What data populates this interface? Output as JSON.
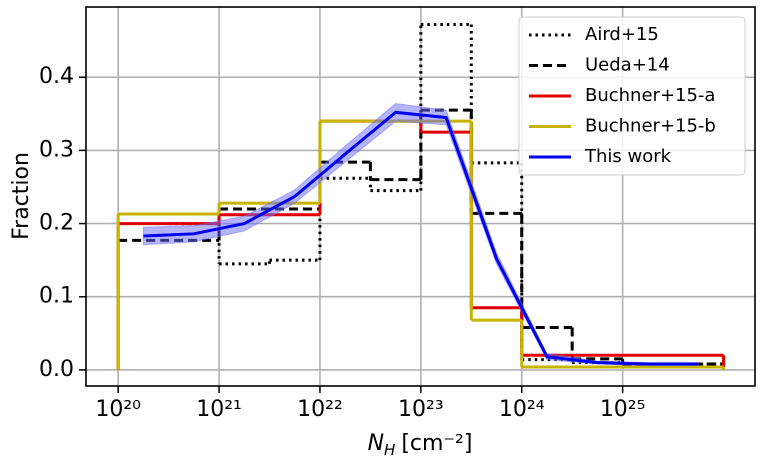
{
  "chart_data": {
    "type": "step",
    "xlabel": {
      "symbol": "N",
      "subscript": "H",
      "unit": "[cm⁻²]"
    },
    "ylabel": "Fraction",
    "xscale": "log",
    "grid": true,
    "legend": "upper right",
    "xlim": [
      4.8e+19,
      2.05e+26
    ],
    "ylim": [
      -0.022,
      0.496
    ],
    "xticks": [
      {
        "value": 1e+20,
        "label": "10²⁰"
      },
      {
        "value": 1e+21,
        "label": "10²¹"
      },
      {
        "value": 1e+22,
        "label": "10²²"
      },
      {
        "value": 1e+23,
        "label": "10²³"
      },
      {
        "value": 1e+24,
        "label": "10²⁴"
      },
      {
        "value": 1e+25,
        "label": "10²⁵"
      }
    ],
    "yticks": [
      {
        "value": 0,
        "label": "0.0"
      },
      0.1,
      0.2,
      0.3,
      0.4
    ],
    "series": [
      {
        "name": "Aird+15",
        "color": "#000000",
        "style": "dotted",
        "drop_to_zero": false,
        "edges": [
          3.162e+20,
          1e+21,
          3.162e+21,
          1e+22,
          3.162e+22,
          1e+23,
          3.162e+23,
          1e+24,
          3.162e+24,
          1e+25,
          1e+26
        ],
        "values": [
          0.2,
          0.145,
          0.15,
          0.262,
          0.245,
          0.472,
          0.283,
          0.014,
          0.01,
          0.008
        ]
      },
      {
        "name": "Ueda+14",
        "color": "#000000",
        "style": "dashed",
        "drop_to_zero": false,
        "edges": [
          1e+20,
          1e+21,
          1e+22,
          3.162e+22,
          1e+23,
          3.162e+23,
          1e+24,
          3.162e+24,
          1e+25,
          1e+26
        ],
        "values": [
          0.177,
          0.22,
          0.284,
          0.26,
          0.355,
          0.214,
          0.058,
          0.015,
          0.008
        ]
      },
      {
        "name": "Buchner+15-a",
        "color": "#e00000",
        "style": "solid",
        "drop_to_zero": true,
        "edges": [
          1e+20,
          1e+21,
          1e+22,
          1e+23,
          3.162e+23,
          1e+24,
          1e+26
        ],
        "values": [
          0.2,
          0.212,
          0.34,
          0.325,
          0.085,
          0.02
        ]
      },
      {
        "name": "Buchner+15-b",
        "color": "#c8b400",
        "style": "solid",
        "drop_to_zero": true,
        "edges": [
          1e+20,
          1e+21,
          1e+22,
          3.162e+23,
          1e+24,
          1e+26
        ],
        "values": [
          0.213,
          0.228,
          0.34,
          0.068,
          0.004
        ]
      },
      {
        "name": "This work",
        "color": "#0000ee",
        "style": "solid",
        "band_color": "#6b6bff",
        "x": [
          1.778e+20,
          5.623e+20,
          1.778e+21,
          5.623e+21,
          1.778e+22,
          5.623e+22,
          1.778e+23,
          5.623e+23,
          1.778e+24,
          5.623e+24,
          1.778e+25,
          5.623e+25
        ],
        "values": [
          0.183,
          0.186,
          0.2,
          0.237,
          0.295,
          0.352,
          0.345,
          0.152,
          0.018,
          0.01,
          0.008,
          0.008
        ],
        "lower": [
          0.171,
          0.175,
          0.19,
          0.228,
          0.284,
          0.34,
          0.335,
          0.145,
          0.014,
          0.008,
          0.006,
          0.006
        ],
        "upper": [
          0.195,
          0.197,
          0.21,
          0.246,
          0.306,
          0.364,
          0.355,
          0.16,
          0.022,
          0.012,
          0.01,
          0.01
        ]
      }
    ]
  }
}
